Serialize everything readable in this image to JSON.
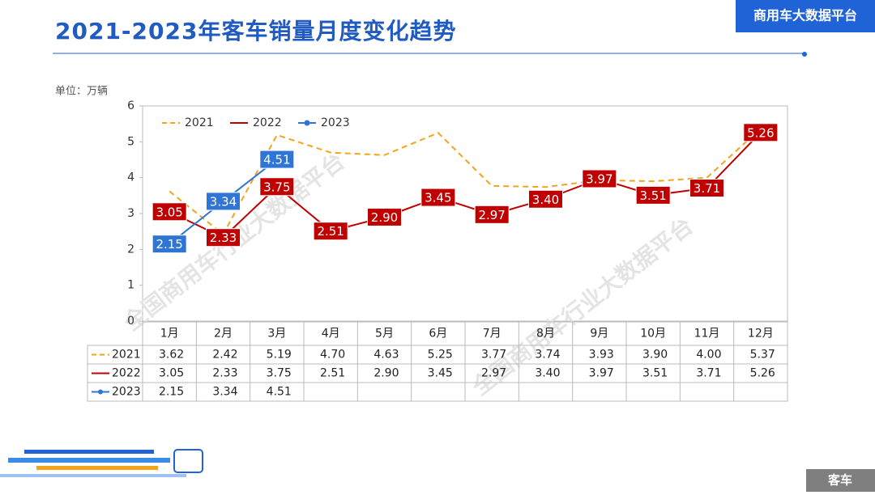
{
  "header": {
    "title": "2021-2023年客车销量月度变化趋势",
    "badge": "商用车大数据平台"
  },
  "footer": {
    "tag": "客车"
  },
  "watermark": "全国商用车行业大数据平台",
  "chart_data": {
    "type": "line",
    "unit": "单位：万辆",
    "categories": [
      "1月",
      "2月",
      "3月",
      "4月",
      "5月",
      "6月",
      "7月",
      "8月",
      "9月",
      "10月",
      "11月",
      "12月"
    ],
    "ylim": [
      0,
      6
    ],
    "yticks": [
      0,
      1,
      2,
      3,
      4,
      5,
      6
    ],
    "series": [
      {
        "name": "2021",
        "color": "#f5a31a",
        "dash": true,
        "labels": false,
        "values": [
          3.62,
          2.42,
          5.19,
          4.7,
          4.63,
          5.25,
          3.77,
          3.74,
          3.93,
          3.9,
          4.0,
          5.37
        ],
        "value_labels": [
          "3.62",
          "2.42",
          "5.19",
          "4.70",
          "4.63",
          "5.25",
          "3.77",
          "3.74",
          "3.93",
          "3.90",
          "4.00",
          "5.37"
        ]
      },
      {
        "name": "2022",
        "color": "#c00000",
        "dash": false,
        "labels": true,
        "values": [
          3.05,
          2.33,
          3.75,
          2.51,
          2.9,
          3.45,
          2.97,
          3.4,
          3.97,
          3.51,
          3.71,
          5.26
        ],
        "value_labels": [
          "3.05",
          "2.33",
          "3.75",
          "2.51",
          "2.90",
          "3.45",
          "2.97",
          "3.40",
          "3.97",
          "3.51",
          "3.71",
          "5.26"
        ]
      },
      {
        "name": "2023",
        "color": "#2e75d6",
        "dash": false,
        "labels": true,
        "markers": true,
        "values": [
          2.15,
          3.34,
          4.51,
          null,
          null,
          null,
          null,
          null,
          null,
          null,
          null,
          null
        ],
        "value_labels": [
          "2.15",
          "3.34",
          "4.51",
          null,
          null,
          null,
          null,
          null,
          null,
          null,
          null,
          null
        ]
      }
    ]
  }
}
